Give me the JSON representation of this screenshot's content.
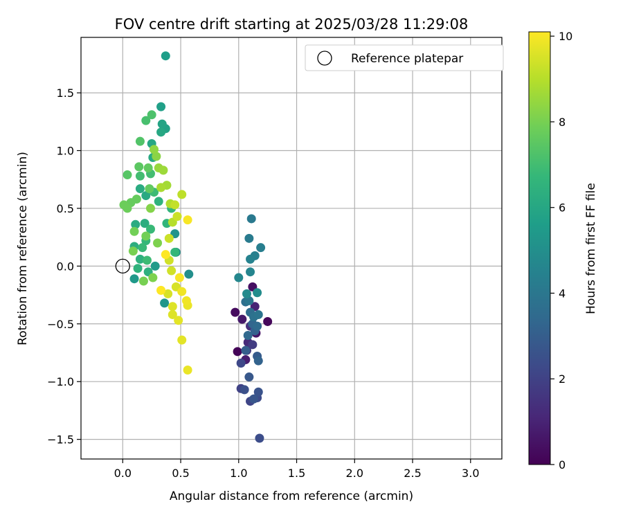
{
  "chart_data": {
    "type": "scatter",
    "title": "FOV centre drift starting at 2025/03/28 11:29:08",
    "xlabel": "Angular distance from reference (arcmin)",
    "ylabel": "Rotation from reference (arcmin)",
    "xlim": [
      -0.36,
      3.27
    ],
    "ylim": [
      -1.67,
      1.98
    ],
    "xticks": [
      "0.0",
      "0.5",
      "1.0",
      "1.5",
      "2.0",
      "2.5",
      "3.0"
    ],
    "xtick_values": [
      0,
      0.5,
      1.0,
      1.5,
      2.0,
      2.5,
      3.0
    ],
    "yticks": [
      "−1.5",
      "−1.0",
      "−0.5",
      "0.0",
      "0.5",
      "1.0",
      "1.5"
    ],
    "ytick_values": [
      -1.5,
      -1.0,
      -0.5,
      0.0,
      0.5,
      1.0,
      1.5
    ],
    "grid": true,
    "legend": {
      "position": "top-right",
      "entries": [
        "Reference platepar"
      ]
    },
    "reference_point": {
      "x": 0.0,
      "y": 0.0
    },
    "colorbar": {
      "label": "Hours from first FF file",
      "range": [
        0,
        10.1
      ],
      "ticks": [
        "0",
        "2",
        "4",
        "6",
        "8",
        "10"
      ],
      "tick_values": [
        0,
        2,
        4,
        6,
        8,
        10
      ],
      "colormap": "viridis"
    },
    "points": [
      {
        "x": 0.99,
        "y": -0.74,
        "h": 0.1
      },
      {
        "x": 1.25,
        "y": -0.48,
        "h": 0.2
      },
      {
        "x": 0.97,
        "y": -0.4,
        "h": 0.3
      },
      {
        "x": 1.12,
        "y": -0.18,
        "h": 0.4
      },
      {
        "x": 1.15,
        "y": -0.58,
        "h": 0.6
      },
      {
        "x": 1.03,
        "y": -0.46,
        "h": 0.7
      },
      {
        "x": 1.06,
        "y": -0.81,
        "h": 0.8
      },
      {
        "x": 1.14,
        "y": -0.35,
        "h": 1.0
      },
      {
        "x": 1.08,
        "y": -0.66,
        "h": 1.2
      },
      {
        "x": 1.1,
        "y": -0.52,
        "h": 1.4
      },
      {
        "x": 1.07,
        "y": -0.73,
        "h": 1.6
      },
      {
        "x": 1.12,
        "y": -0.68,
        "h": 1.8
      },
      {
        "x": 1.02,
        "y": -1.06,
        "h": 2.0
      },
      {
        "x": 1.1,
        "y": -1.17,
        "h": 2.1
      },
      {
        "x": 1.02,
        "y": -0.84,
        "h": 2.2
      },
      {
        "x": 1.16,
        "y": -1.14,
        "h": 2.3
      },
      {
        "x": 1.18,
        "y": -1.49,
        "h": 2.4
      },
      {
        "x": 1.05,
        "y": -1.07,
        "h": 2.5
      },
      {
        "x": 1.17,
        "y": -1.09,
        "h": 2.6
      },
      {
        "x": 1.13,
        "y": -1.15,
        "h": 2.7
      },
      {
        "x": 1.09,
        "y": -0.96,
        "h": 2.8
      },
      {
        "x": 1.16,
        "y": -0.78,
        "h": 2.9
      },
      {
        "x": 1.06,
        "y": -0.73,
        "h": 3.0
      },
      {
        "x": 1.14,
        "y": -0.56,
        "h": 3.1
      },
      {
        "x": 1.17,
        "y": -0.82,
        "h": 3.2
      },
      {
        "x": 1.12,
        "y": -0.5,
        "h": 3.3
      },
      {
        "x": 1.08,
        "y": -0.6,
        "h": 3.4
      },
      {
        "x": 1.16,
        "y": -0.52,
        "h": 3.5
      },
      {
        "x": 1.1,
        "y": -0.4,
        "h": 3.6
      },
      {
        "x": 1.06,
        "y": -0.31,
        "h": 3.7
      },
      {
        "x": 1.13,
        "y": -0.44,
        "h": 3.8
      },
      {
        "x": 1.17,
        "y": -0.42,
        "h": 3.9
      },
      {
        "x": 1.09,
        "y": -0.3,
        "h": 4.0
      },
      {
        "x": 1.11,
        "y": 0.41,
        "h": 4.1
      },
      {
        "x": 1.09,
        "y": 0.24,
        "h": 4.2
      },
      {
        "x": 1.19,
        "y": 0.16,
        "h": 4.3
      },
      {
        "x": 1.14,
        "y": 0.09,
        "h": 4.4
      },
      {
        "x": 1.1,
        "y": 0.06,
        "h": 4.5
      },
      {
        "x": 1.1,
        "y": -0.05,
        "h": 4.6
      },
      {
        "x": 1.0,
        "y": -0.1,
        "h": 4.7
      },
      {
        "x": 1.07,
        "y": -0.24,
        "h": 4.8
      },
      {
        "x": 1.16,
        "y": -0.23,
        "h": 4.9
      },
      {
        "x": 0.57,
        "y": -0.07,
        "h": 5.0
      },
      {
        "x": 0.46,
        "y": 0.12,
        "h": 5.1
      },
      {
        "x": 0.45,
        "y": 0.28,
        "h": 5.2
      },
      {
        "x": 0.36,
        "y": -0.32,
        "h": 5.3
      },
      {
        "x": 0.1,
        "y": -0.11,
        "h": 5.4
      },
      {
        "x": 0.28,
        "y": 0.0,
        "h": 5.5
      },
      {
        "x": 0.37,
        "y": 1.82,
        "h": 5.6
      },
      {
        "x": 0.33,
        "y": 1.38,
        "h": 5.7
      },
      {
        "x": 0.37,
        "y": 1.19,
        "h": 5.8
      },
      {
        "x": 0.34,
        "y": 1.23,
        "h": 5.9
      },
      {
        "x": 0.33,
        "y": 1.16,
        "h": 6.0
      },
      {
        "x": 0.25,
        "y": 1.06,
        "h": 6.0
      },
      {
        "x": 0.26,
        "y": 0.94,
        "h": 6.1
      },
      {
        "x": 0.2,
        "y": 0.61,
        "h": 6.1
      },
      {
        "x": 0.15,
        "y": 0.67,
        "h": 6.2
      },
      {
        "x": 0.11,
        "y": 0.36,
        "h": 6.2
      },
      {
        "x": 0.19,
        "y": 0.37,
        "h": 6.3
      },
      {
        "x": 0.1,
        "y": 0.17,
        "h": 6.3
      },
      {
        "x": 0.15,
        "y": 0.06,
        "h": 6.4
      },
      {
        "x": 0.22,
        "y": -0.05,
        "h": 6.4
      },
      {
        "x": 0.13,
        "y": -0.02,
        "h": 6.5
      },
      {
        "x": 0.31,
        "y": 0.56,
        "h": 6.5
      },
      {
        "x": 0.42,
        "y": 0.5,
        "h": 6.6
      },
      {
        "x": 0.38,
        "y": 0.37,
        "h": 6.6
      },
      {
        "x": 0.45,
        "y": 0.12,
        "h": 6.7
      },
      {
        "x": 0.2,
        "y": 0.22,
        "h": 6.7
      },
      {
        "x": 0.24,
        "y": 0.32,
        "h": 6.8
      },
      {
        "x": 0.17,
        "y": 0.16,
        "h": 6.8
      },
      {
        "x": 0.21,
        "y": 0.05,
        "h": 6.9
      },
      {
        "x": 0.27,
        "y": 0.64,
        "h": 6.9
      },
      {
        "x": 0.24,
        "y": 0.8,
        "h": 7.0
      },
      {
        "x": 0.15,
        "y": 0.78,
        "h": 7.0
      },
      {
        "x": 0.2,
        "y": 1.26,
        "h": 7.1
      },
      {
        "x": 0.25,
        "y": 1.31,
        "h": 7.2
      },
      {
        "x": 0.15,
        "y": 1.08,
        "h": 7.3
      },
      {
        "x": 0.04,
        "y": 0.79,
        "h": 7.4
      },
      {
        "x": 0.14,
        "y": 0.86,
        "h": 7.5
      },
      {
        "x": 0.22,
        "y": 0.85,
        "h": 7.6
      },
      {
        "x": 0.23,
        "y": 0.67,
        "h": 7.6
      },
      {
        "x": 0.12,
        "y": 0.58,
        "h": 7.7
      },
      {
        "x": 0.07,
        "y": 0.55,
        "h": 7.7
      },
      {
        "x": 0.01,
        "y": 0.53,
        "h": 7.8
      },
      {
        "x": 0.04,
        "y": 0.5,
        "h": 7.8
      },
      {
        "x": 0.1,
        "y": 0.3,
        "h": 7.9
      },
      {
        "x": 0.2,
        "y": 0.26,
        "h": 7.9
      },
      {
        "x": 0.09,
        "y": 0.13,
        "h": 8.0
      },
      {
        "x": 0.18,
        "y": -0.13,
        "h": 8.0
      },
      {
        "x": 0.26,
        "y": -0.1,
        "h": 8.1
      },
      {
        "x": 0.3,
        "y": 0.2,
        "h": 8.1
      },
      {
        "x": 0.24,
        "y": 0.5,
        "h": 8.2
      },
      {
        "x": 0.29,
        "y": 0.95,
        "h": 8.3
      },
      {
        "x": 0.27,
        "y": 1.01,
        "h": 8.4
      },
      {
        "x": 0.31,
        "y": 0.85,
        "h": 8.5
      },
      {
        "x": 0.35,
        "y": 0.83,
        "h": 8.6
      },
      {
        "x": 0.38,
        "y": 0.7,
        "h": 8.7
      },
      {
        "x": 0.33,
        "y": 0.68,
        "h": 8.8
      },
      {
        "x": 0.41,
        "y": 0.54,
        "h": 8.9
      },
      {
        "x": 0.43,
        "y": 0.38,
        "h": 9.0
      },
      {
        "x": 0.51,
        "y": 0.62,
        "h": 9.1
      },
      {
        "x": 0.45,
        "y": 0.53,
        "h": 9.2
      },
      {
        "x": 0.47,
        "y": 0.43,
        "h": 9.3
      },
      {
        "x": 0.4,
        "y": 0.24,
        "h": 9.3
      },
      {
        "x": 0.4,
        "y": 0.05,
        "h": 9.4
      },
      {
        "x": 0.42,
        "y": -0.04,
        "h": 9.4
      },
      {
        "x": 0.46,
        "y": -0.18,
        "h": 9.5
      },
      {
        "x": 0.39,
        "y": -0.24,
        "h": 9.5
      },
      {
        "x": 0.43,
        "y": -0.35,
        "h": 9.6
      },
      {
        "x": 0.43,
        "y": -0.42,
        "h": 9.6
      },
      {
        "x": 0.48,
        "y": -0.47,
        "h": 9.7
      },
      {
        "x": 0.51,
        "y": -0.64,
        "h": 9.7
      },
      {
        "x": 0.56,
        "y": -0.9,
        "h": 9.8
      },
      {
        "x": 0.56,
        "y": -0.34,
        "h": 9.8
      },
      {
        "x": 0.51,
        "y": -0.22,
        "h": 9.9
      },
      {
        "x": 0.55,
        "y": -0.3,
        "h": 9.9
      },
      {
        "x": 0.56,
        "y": 0.4,
        "h": 10.0
      },
      {
        "x": 0.49,
        "y": -0.1,
        "h": 10.0
      },
      {
        "x": 0.37,
        "y": 0.1,
        "h": 10.1
      },
      {
        "x": 0.33,
        "y": -0.21,
        "h": 10.1
      }
    ]
  },
  "colors": {
    "reference_marker": "#000000",
    "grid": "#b0b0b0",
    "axes": "#000000",
    "viridis": [
      "#440154",
      "#482878",
      "#3e4989",
      "#31688e",
      "#26828e",
      "#1f9e89",
      "#35b779",
      "#6ece58",
      "#b5de2b",
      "#fde725"
    ]
  }
}
